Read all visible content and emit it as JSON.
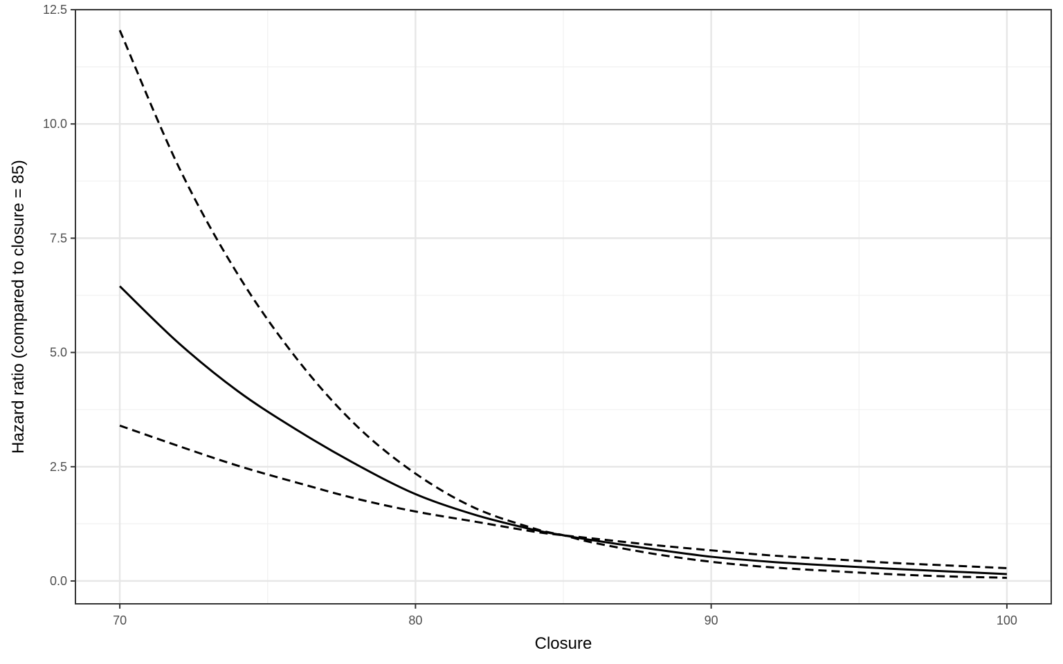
{
  "chart_data": {
    "type": "line",
    "title": "",
    "xlabel": "Closure",
    "ylabel": "Hazard ratio (compared to closure = 85)",
    "xlim": [
      68.5,
      101.5
    ],
    "ylim": [
      -0.5,
      12.5
    ],
    "x_ticks": [
      70,
      80,
      90,
      100
    ],
    "x_tick_labels": [
      "70",
      "80",
      "90",
      "100"
    ],
    "x_minor_ticks": [
      75,
      85,
      95
    ],
    "y_ticks": [
      0,
      2.5,
      5,
      7.5,
      10,
      12.5
    ],
    "y_tick_labels": [
      "0.0",
      "2.5",
      "5.0",
      "7.5",
      "10.0",
      "12.5"
    ],
    "y_minor_ticks": [
      1.25,
      3.75,
      6.25,
      8.75,
      11.25
    ],
    "grid": true,
    "legend": "none",
    "series": [
      {
        "style": "solid",
        "color": "#000000",
        "x": [
          70,
          72,
          74,
          76,
          78,
          80,
          82,
          84,
          85,
          86,
          88,
          90,
          92,
          94,
          96,
          98,
          100
        ],
        "y": [
          6.45,
          5.2,
          4.15,
          3.3,
          2.55,
          1.9,
          1.45,
          1.12,
          1.0,
          0.89,
          0.7,
          0.53,
          0.42,
          0.34,
          0.27,
          0.21,
          0.15
        ]
      },
      {
        "style": "dashed",
        "color": "#000000",
        "x": [
          70,
          72,
          74,
          76,
          78,
          80,
          82,
          84,
          85,
          86,
          88,
          90,
          92,
          94,
          96,
          98,
          100
        ],
        "y": [
          12.05,
          9.05,
          6.7,
          4.85,
          3.4,
          2.35,
          1.6,
          1.15,
          1.0,
          0.84,
          0.6,
          0.42,
          0.3,
          0.22,
          0.15,
          0.1,
          0.07
        ]
      },
      {
        "style": "dashed",
        "color": "#000000",
        "x": [
          70,
          72,
          74,
          76,
          78,
          80,
          82,
          84,
          85,
          86,
          88,
          90,
          92,
          94,
          96,
          98,
          100
        ],
        "y": [
          3.4,
          2.95,
          2.52,
          2.15,
          1.8,
          1.52,
          1.3,
          1.08,
          1.0,
          0.93,
          0.79,
          0.67,
          0.56,
          0.48,
          0.4,
          0.34,
          0.28
        ]
      }
    ]
  }
}
